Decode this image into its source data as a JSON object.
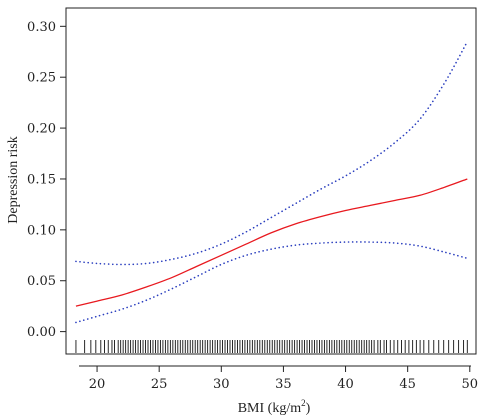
{
  "chart_data": {
    "type": "line",
    "xlabel": "BMI (kg/m",
    "xlabel_sup": "2",
    "xlabel_close": ")",
    "ylabel": "Depression risk",
    "xlim": [
      17.5,
      50.5
    ],
    "ylim": [
      -0.022,
      0.318
    ],
    "xticks": [
      20,
      25,
      30,
      35,
      40,
      45,
      50
    ],
    "yticks": [
      "0.00",
      "0.05",
      "0.10",
      "0.15",
      "0.20",
      "0.25",
      "0.30"
    ],
    "grid": false,
    "series": [
      {
        "role": "estimate",
        "style": "solid",
        "color": "#e8191f",
        "x": [
          18.3,
          20,
          22,
          24,
          26,
          28,
          30,
          32,
          34,
          36,
          38,
          40,
          42,
          44,
          46,
          48,
          49.8
        ],
        "y": [
          0.025,
          0.03,
          0.036,
          0.044,
          0.053,
          0.064,
          0.075,
          0.086,
          0.097,
          0.106,
          0.113,
          0.119,
          0.124,
          0.129,
          0.134,
          0.142,
          0.15
        ]
      },
      {
        "role": "upper confidence bound",
        "style": "dotted",
        "color": "#2b3fbf",
        "x": [
          18.3,
          20,
          22,
          24,
          26,
          28,
          30,
          32,
          34,
          36,
          38,
          40,
          42,
          44,
          46,
          48,
          49.8
        ],
        "y": [
          0.069,
          0.067,
          0.066,
          0.067,
          0.071,
          0.077,
          0.086,
          0.098,
          0.112,
          0.126,
          0.14,
          0.153,
          0.168,
          0.186,
          0.209,
          0.245,
          0.285
        ]
      },
      {
        "role": "lower confidence bound",
        "style": "dotted",
        "color": "#2b3fbf",
        "x": [
          18.3,
          20,
          22,
          24,
          26,
          28,
          30,
          32,
          34,
          36,
          38,
          40,
          42,
          44,
          46,
          48,
          49.8
        ],
        "y": [
          0.009,
          0.015,
          0.022,
          0.031,
          0.042,
          0.054,
          0.066,
          0.075,
          0.081,
          0.085,
          0.087,
          0.088,
          0.088,
          0.087,
          0.084,
          0.078,
          0.072
        ]
      }
    ],
    "rug": [
      18.3,
      19.0,
      19.5,
      19.9,
      20.3,
      20.6,
      20.9,
      21.2,
      21.4,
      21.7,
      21.9,
      22.1,
      22.3,
      22.5,
      22.7,
      22.9,
      23.1,
      23.3,
      23.5,
      23.7,
      23.9,
      24.1,
      24.3,
      24.5,
      24.7,
      24.9,
      25.1,
      25.3,
      25.5,
      25.7,
      25.9,
      26.1,
      26.3,
      26.5,
      26.7,
      26.9,
      27.1,
      27.3,
      27.5,
      27.7,
      27.9,
      28.1,
      28.3,
      28.5,
      28.7,
      28.9,
      29.1,
      29.3,
      29.5,
      29.7,
      29.9,
      30.1,
      30.3,
      30.5,
      30.7,
      30.9,
      31.1,
      31.3,
      31.5,
      31.7,
      31.9,
      32.1,
      32.3,
      32.5,
      32.7,
      32.9,
      33.1,
      33.3,
      33.5,
      33.7,
      33.9,
      34.1,
      34.3,
      34.5,
      34.7,
      34.9,
      35.1,
      35.3,
      35.5,
      35.7,
      35.9,
      36.1,
      36.3,
      36.5,
      36.7,
      36.9,
      37.1,
      37.3,
      37.5,
      37.7,
      37.9,
      38.1,
      38.3,
      38.5,
      38.7,
      38.9,
      39.1,
      39.3,
      39.5,
      39.7,
      39.9,
      40.1,
      40.3,
      40.5,
      40.7,
      40.9,
      41.1,
      41.3,
      41.5,
      41.7,
      41.9,
      42.1,
      42.3,
      42.6,
      42.8,
      43.1,
      43.3,
      43.6,
      43.9,
      44.2,
      44.5,
      44.8,
      45.1,
      45.4,
      45.7,
      46.0,
      46.3,
      46.7,
      47.1,
      47.5,
      47.9,
      48.3,
      48.7,
      49.1,
      49.5,
      49.8
    ]
  }
}
